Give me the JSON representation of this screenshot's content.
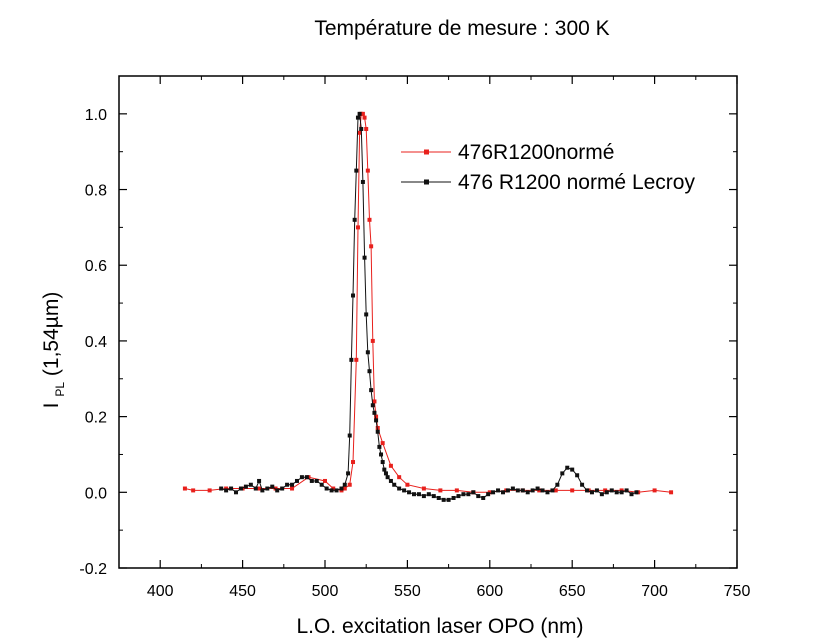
{
  "chart_data": {
    "type": "line",
    "title": "Température de mesure : 300 K",
    "xlabel": "L.O. excitation laser OPO (nm)",
    "ylabel": {
      "main": "I",
      "sub": "PL",
      "rest": "(1,54µm)"
    },
    "xlim": [
      375,
      750
    ],
    "ylim": [
      -0.2,
      1.1
    ],
    "x_ticks": [
      400,
      450,
      500,
      550,
      600,
      650,
      700,
      750
    ],
    "y_ticks": [
      -0.2,
      0.0,
      0.2,
      0.4,
      0.6,
      0.8,
      1.0
    ],
    "y_tick_labels": [
      "-0.2",
      "0.0",
      "0.2",
      "0.4",
      "0.6",
      "0.8",
      "1.0"
    ],
    "grid": false,
    "legend_position": "top-right",
    "series": [
      {
        "name": "476R1200normé",
        "color": "#e8201c",
        "marker": "square",
        "x": [
          415,
          420,
          430,
          440,
          450,
          460,
          470,
          480,
          490,
          500,
          505,
          510,
          512,
          515,
          517,
          519,
          520,
          521,
          522,
          523,
          524,
          525,
          526,
          527,
          528,
          529,
          530,
          531,
          532,
          535,
          540,
          545,
          550,
          560,
          570,
          580,
          590,
          600,
          610,
          620,
          630,
          640,
          650,
          660,
          670,
          680,
          690,
          700,
          710
        ],
        "y": [
          0.01,
          0.005,
          0.005,
          0.01,
          0.01,
          0.01,
          0.01,
          0.01,
          0.04,
          0.03,
          0.01,
          0.005,
          0.01,
          0.02,
          0.08,
          0.35,
          0.7,
          0.95,
          1.0,
          1.0,
          0.99,
          0.96,
          0.85,
          0.72,
          0.65,
          0.4,
          0.24,
          0.2,
          0.17,
          0.13,
          0.07,
          0.04,
          0.02,
          0.01,
          0.005,
          0.005,
          0.0,
          0.0,
          0.005,
          0.005,
          0.005,
          0.005,
          0.005,
          0.005,
          0.005,
          0.005,
          0.0,
          0.005,
          0.0
        ]
      },
      {
        "name": "476 R1200 normé Lecroy",
        "color": "#111111",
        "marker": "square",
        "x": [
          437,
          440,
          443,
          446,
          449,
          452,
          455,
          458,
          460,
          462,
          465,
          468,
          471,
          474,
          477,
          480,
          483,
          486,
          489,
          492,
          495,
          498,
          501,
          504,
          507,
          510,
          512,
          514,
          515,
          516,
          517,
          518,
          519,
          520,
          521,
          522,
          523,
          524,
          525,
          526,
          527,
          528,
          529,
          530,
          531,
          532,
          533,
          534,
          535,
          536,
          537,
          538,
          540,
          542,
          545,
          548,
          551,
          554,
          557,
          560,
          563,
          566,
          569,
          572,
          575,
          578,
          581,
          584,
          587,
          590,
          593,
          596,
          599,
          602,
          605,
          608,
          611,
          614,
          617,
          620,
          623,
          626,
          629,
          632,
          635,
          638,
          641,
          644,
          647,
          650,
          653,
          656,
          659,
          662,
          665,
          668,
          671,
          674,
          677,
          680,
          683,
          686,
          689
        ],
        "y": [
          0.01,
          0.005,
          0.01,
          0.0,
          0.01,
          0.015,
          0.02,
          0.01,
          0.03,
          0.005,
          0.01,
          0.015,
          0.005,
          0.01,
          0.02,
          0.02,
          0.03,
          0.04,
          0.04,
          0.03,
          0.03,
          0.02,
          0.01,
          0.005,
          0.005,
          0.01,
          0.02,
          0.05,
          0.15,
          0.35,
          0.52,
          0.72,
          0.85,
          0.99,
          1.0,
          0.96,
          0.82,
          0.62,
          0.47,
          0.37,
          0.32,
          0.27,
          0.23,
          0.21,
          0.19,
          0.16,
          0.12,
          0.1,
          0.08,
          0.06,
          0.05,
          0.04,
          0.03,
          0.02,
          0.01,
          0.005,
          0.0,
          -0.005,
          -0.005,
          -0.01,
          -0.005,
          -0.01,
          -0.015,
          -0.02,
          -0.02,
          -0.015,
          -0.01,
          -0.005,
          -0.005,
          0.0,
          -0.01,
          -0.015,
          -0.005,
          0.0,
          0.005,
          0.0,
          0.005,
          0.01,
          0.005,
          0.005,
          0.0,
          0.005,
          0.01,
          0.005,
          0.0,
          0.005,
          0.02,
          0.05,
          0.065,
          0.06,
          0.045,
          0.02,
          0.005,
          0.0,
          0.005,
          -0.005,
          0.0,
          0.005,
          0.0,
          0.0,
          0.005,
          -0.005,
          0.0
        ]
      }
    ]
  }
}
